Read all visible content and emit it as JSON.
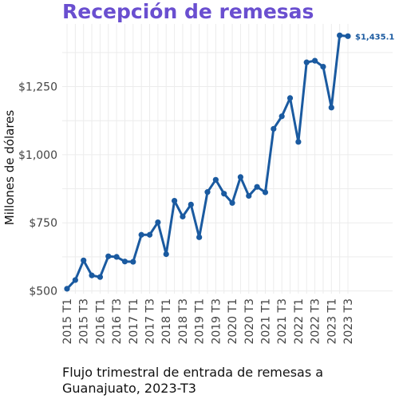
{
  "chart_data": {
    "type": "line",
    "title": "Recepción de remesas",
    "caption": "Flujo trimestral de entrada de remesas a Guanajuato, 2023-T3",
    "ylabel": "Millones de dólares",
    "xlabel": "",
    "x": [
      "2015 T1",
      "2015 T2",
      "2015 T3",
      "2015 T4",
      "2016 T1",
      "2016 T2",
      "2016 T3",
      "2016 T4",
      "2017 T1",
      "2017 T2",
      "2017 T3",
      "2017 T4",
      "2018 T1",
      "2018 T2",
      "2018 T3",
      "2018 T4",
      "2019 T1",
      "2019 T2",
      "2019 T3",
      "2019 T4",
      "2020 T1",
      "2020 T2",
      "2020 T3",
      "2020 T4",
      "2021 T1",
      "2021 T2",
      "2021 T3",
      "2021 T4",
      "2022 T1",
      "2022 T2",
      "2022 T3",
      "2022 T4",
      "2023 T1",
      "2023 T2",
      "2023 T3"
    ],
    "x_tick_labels": [
      "2015 T1",
      "2015 T3",
      "2016 T1",
      "2016 T3",
      "2017 T1",
      "2017 T3",
      "2018 T1",
      "2018 T3",
      "2019 T1",
      "2019 T3",
      "2020 T1",
      "2020 T3",
      "2021 T1",
      "2021 T3",
      "2022 T1",
      "2022 T3",
      "2023 T1",
      "2023 T3"
    ],
    "series": [
      {
        "values": [
          508,
          540,
          612,
          557,
          551,
          627,
          625,
          608,
          607,
          706,
          706,
          752,
          635,
          831,
          773,
          817,
          697,
          863,
          908,
          857,
          823,
          918,
          849,
          882,
          862,
          1095,
          1141,
          1208,
          1047,
          1339,
          1345,
          1323,
          1173,
          1438,
          1435.1
        ],
        "color": "#1a5aa0"
      }
    ],
    "ylim": [
      490,
      1480
    ],
    "yticks": [
      500,
      750,
      1000,
      1250
    ],
    "ytick_labels": [
      "$500",
      "$750",
      "$1,000",
      "$1,250"
    ],
    "end_label": "$1,435.1",
    "grid": true
  }
}
